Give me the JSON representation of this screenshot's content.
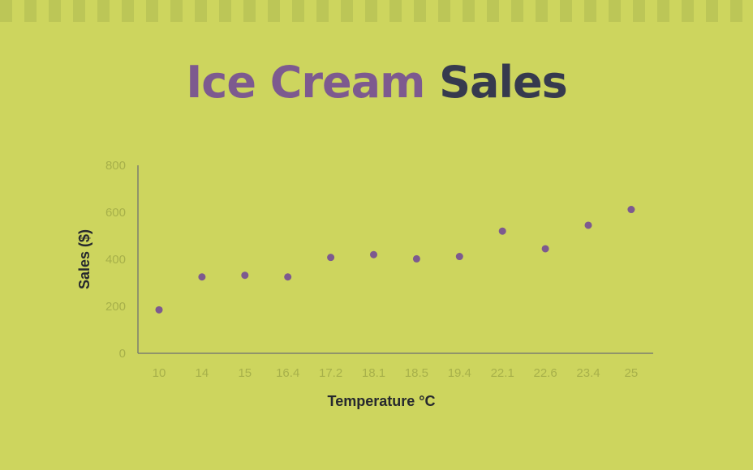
{
  "title_part1": "Ice Cream",
  "title_part2": "Sales",
  "colors": {
    "background": "#cdd55e",
    "stripe": "#bcc657",
    "point": "#7d5a8f",
    "title_accent": "#7d5a8f",
    "title_dark": "#363a4e"
  },
  "chart_data": {
    "type": "scatter",
    "title": "Ice Cream Sales",
    "xlabel": "Temperature °C",
    "ylabel": "Sales ($)",
    "categories": [
      "10",
      "14",
      "15",
      "16.4",
      "17.2",
      "18.1",
      "18.5",
      "19.4",
      "22.1",
      "22.6",
      "23.4",
      "25"
    ],
    "values": [
      185,
      325,
      332,
      325,
      408,
      420,
      402,
      412,
      520,
      445,
      545,
      612
    ],
    "ylim": [
      0,
      800
    ],
    "yticks": [
      0,
      200,
      400,
      600,
      800
    ],
    "grid": false,
    "legend": "none"
  }
}
